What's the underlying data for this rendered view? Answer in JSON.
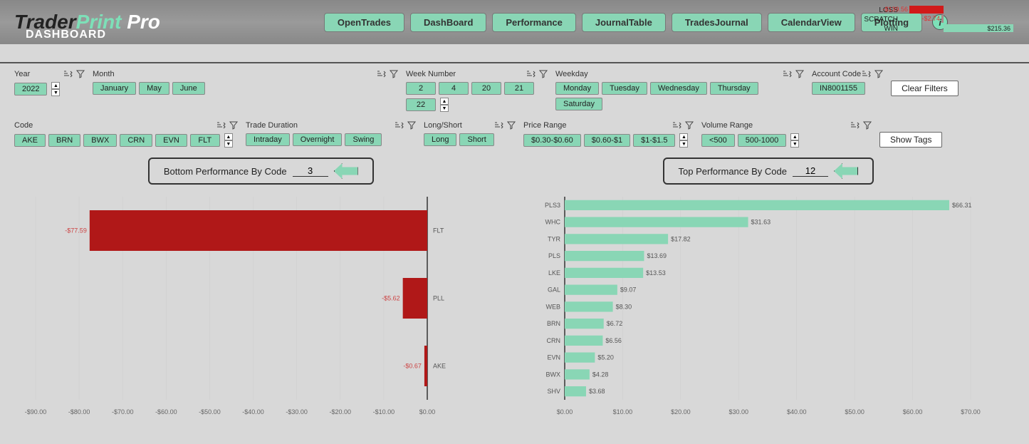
{
  "brand": {
    "p0": "Trader",
    "p1": "Print",
    "p2": " Pro",
    "subtitle": "DASHBOARD"
  },
  "nav": [
    "OpenTrades",
    "DashBoard",
    "Performance",
    "JournalTable",
    "TradesJournal",
    "CalendarView",
    "Plotting"
  ],
  "summary": {
    "rows": [
      {
        "label": "LOSS",
        "value": "-$139.56",
        "neg": true,
        "color": "#d11a1a",
        "width": 48
      },
      {
        "label": "SCRATCH",
        "value": "-$2.74",
        "neg": true,
        "color": "#a88",
        "width": 3
      },
      {
        "label": "WIN",
        "value": "$215.36",
        "neg": false,
        "color": "#89d6b5",
        "width": 98
      }
    ]
  },
  "filters": {
    "year": {
      "label": "Year",
      "chips": [
        "2022"
      ],
      "spinner": true
    },
    "month": {
      "label": "Month",
      "chips": [
        "January",
        "May",
        "June"
      ]
    },
    "week": {
      "label": "Week Number",
      "chips": [
        "2",
        "4",
        "20",
        "21",
        "22"
      ],
      "spinner": true
    },
    "weekday": {
      "label": "Weekday",
      "chips": [
        "Monday",
        "Tuesday",
        "Wednesday",
        "Thursday",
        "Saturday"
      ]
    },
    "account": {
      "label": "Account Code",
      "chips": [
        "IN8001155"
      ]
    },
    "code": {
      "label": "Code",
      "chips": [
        "AKE",
        "BRN",
        "BWX",
        "CRN",
        "EVN",
        "FLT"
      ],
      "spinner": true
    },
    "duration": {
      "label": "Trade Duration",
      "chips": [
        "Intraday",
        "Overnight",
        "Swing"
      ]
    },
    "ls": {
      "label": "Long/Short",
      "chips": [
        "Long",
        "Short"
      ]
    },
    "price": {
      "label": "Price Range",
      "chips": [
        "$0.30-$0.60",
        "$0.60-$1",
        "$1-$1.5"
      ],
      "spinner": true
    },
    "volume": {
      "label": "Volume Range",
      "chips": [
        "<500",
        "500-1000"
      ],
      "spinner": true
    }
  },
  "actions": {
    "clear": "Clear Filters",
    "tags": "Show Tags"
  },
  "bottomChart": {
    "title": "Bottom Performance By Code",
    "input": "3",
    "type": "bar",
    "orientation": "h",
    "bars": [
      {
        "label": "FLT",
        "value": -77.59,
        "text": "-$77.59"
      },
      {
        "label": "PLL",
        "value": -5.62,
        "text": "-$5.62"
      },
      {
        "label": "AKE",
        "value": -0.67,
        "text": "-$0.67"
      }
    ],
    "xmin": -90,
    "xmax": 0,
    "xticks": [
      "-$90.00",
      "-$80.00",
      "-$70.00",
      "-$60.00",
      "-$50.00",
      "-$40.00",
      "-$30.00",
      "-$20.00",
      "-$10.00",
      "$0.00"
    ],
    "bar_color": "#b01818",
    "text_color": "#c44",
    "label_color": "#555",
    "tick_color": "#666",
    "tick_fontsize": 9
  },
  "topChart": {
    "title": "Top Performance By Code",
    "input": "12",
    "type": "bar",
    "orientation": "h",
    "bars": [
      {
        "label": "PLS3",
        "value": 66.31,
        "text": "$66.31"
      },
      {
        "label": "WHC",
        "value": 31.63,
        "text": "$31.63"
      },
      {
        "label": "TYR",
        "value": 17.82,
        "text": "$17.82"
      },
      {
        "label": "PLS",
        "value": 13.69,
        "text": "$13.69"
      },
      {
        "label": "LKE",
        "value": 13.53,
        "text": "$13.53"
      },
      {
        "label": "GAL",
        "value": 9.07,
        "text": "$9.07"
      },
      {
        "label": "WEB",
        "value": 8.3,
        "text": "$8.30"
      },
      {
        "label": "BRN",
        "value": 6.72,
        "text": "$6.72"
      },
      {
        "label": "CRN",
        "value": 6.56,
        "text": "$6.56"
      },
      {
        "label": "EVN",
        "value": 5.2,
        "text": "$5.20"
      },
      {
        "label": "BWX",
        "value": 4.28,
        "text": "$4.28"
      },
      {
        "label": "SHV",
        "value": 3.68,
        "text": "$3.68"
      }
    ],
    "xmin": 0,
    "xmax": 70,
    "xticks": [
      "$0.00",
      "$10.00",
      "$20.00",
      "$30.00",
      "$40.00",
      "$50.00",
      "$60.00",
      "$70.00"
    ],
    "bar_color": "#89d6b5",
    "text_color": "#555",
    "label_color": "#555",
    "tick_color": "#666",
    "tick_fontsize": 9
  }
}
